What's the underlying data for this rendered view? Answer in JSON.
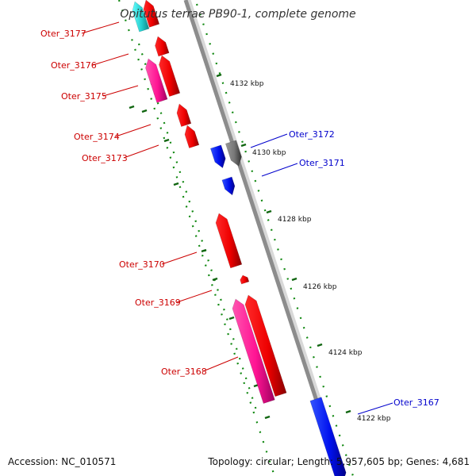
{
  "title": "Opitutus terrae PB90-1, complete genome",
  "footer": {
    "accession": "Accession: NC_010571",
    "topology": "Topology: circular; Length: 5,957,605 bp; Genes: 4,681"
  },
  "colors": {
    "gc_skew_dash": "#118811",
    "backbone": "#888888",
    "label_minus": "#cc0000",
    "label_plus": "#0000cc"
  },
  "ticks": [
    "4132 kbp",
    "4130 kbp",
    "4128 kbp",
    "4126 kbp",
    "4124 kbp",
    "4122 kbp"
  ],
  "labels_minus": [
    "Oter_3177",
    "Oter_3176",
    "Oter_3175",
    "Oter_3174",
    "Oter_3173",
    "Oter_3170",
    "Oter_3169",
    "Oter_3168"
  ],
  "labels_plus": [
    "Oter_3172",
    "Oter_3171",
    "Oter_3167"
  ]
}
